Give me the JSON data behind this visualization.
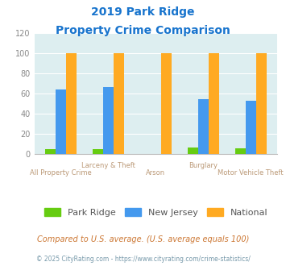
{
  "title_line1": "2019 Park Ridge",
  "title_line2": "Property Crime Comparison",
  "title_color": "#1874cd",
  "categories": [
    "All Property Crime",
    "Larceny & Theft",
    "Arson",
    "Burglary",
    "Motor Vehicle Theft"
  ],
  "park_ridge": [
    5,
    5,
    0,
    7,
    6
  ],
  "new_jersey": [
    64,
    67,
    0,
    55,
    53
  ],
  "national": [
    100,
    100,
    100,
    100,
    100
  ],
  "colors": {
    "park_ridge": "#66cc11",
    "new_jersey": "#4499ee",
    "national": "#ffaa22"
  },
  "ylim": [
    0,
    120
  ],
  "yticks": [
    0,
    20,
    40,
    60,
    80,
    100,
    120
  ],
  "xlabel_color": "#bb9977",
  "background_color": "#ddeef0",
  "grid_color": "#ffffff",
  "footnote": "Compared to U.S. average. (U.S. average equals 100)",
  "footnote2": "© 2025 CityRating.com - https://www.cityrating.com/crime-statistics/",
  "footnote_color": "#cc7733",
  "footnote2_color": "#7799aa",
  "legend_labels": [
    "Park Ridge",
    "New Jersey",
    "National"
  ],
  "bar_width": 0.22
}
